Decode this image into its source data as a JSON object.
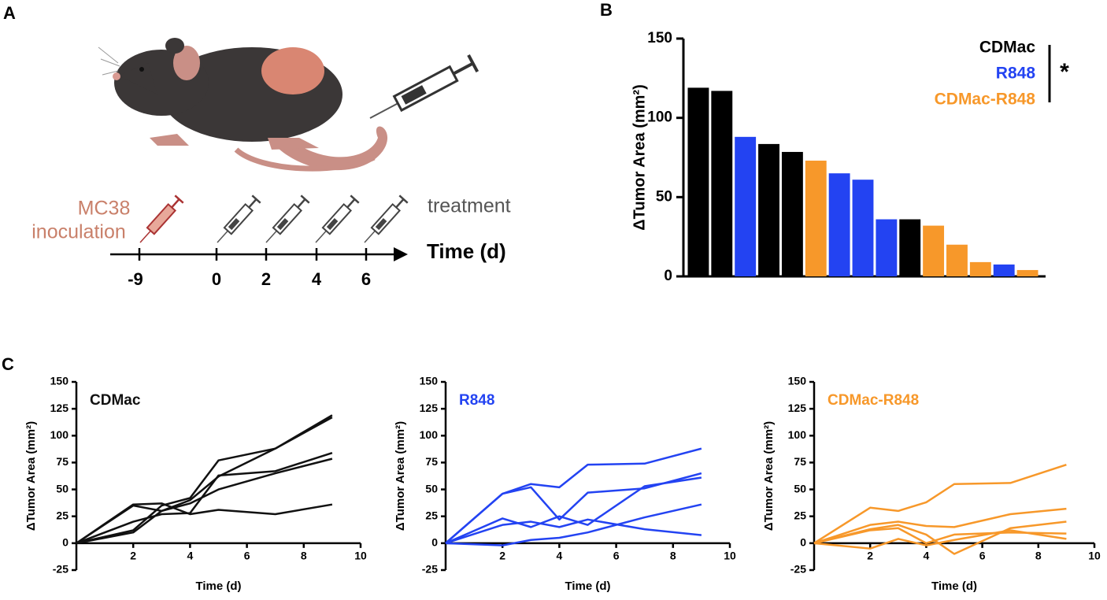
{
  "panel_labels": [
    "A",
    "B",
    "C"
  ],
  "diagram": {
    "inoculation_label": [
      "MC38",
      "inoculation"
    ],
    "treatment_label": "treatment",
    "axis_label": "Time (d)",
    "timeline_labels": [
      "-9",
      "0",
      "2",
      "4",
      "6"
    ]
  },
  "chart_data": [
    {
      "type": "bar",
      "y_label": "ΔTumor Area (mm²)",
      "ylim": [
        0,
        150
      ],
      "yticks": [
        0,
        50,
        100,
        150
      ],
      "categories": [
        null,
        null,
        null,
        null,
        null,
        null,
        null,
        null,
        null,
        null,
        null,
        null,
        null,
        null,
        null
      ],
      "legend": "top-right",
      "annotation": "*",
      "series": [
        {
          "name": "CDMac",
          "color": "#000000",
          "values": [
            119,
            117,
            null,
            83.5,
            78.5,
            null,
            null,
            null,
            null,
            36,
            null,
            null,
            null,
            null,
            null
          ]
        },
        {
          "name": "R848",
          "color": "#2343f2",
          "values": [
            null,
            null,
            88,
            null,
            null,
            null,
            65,
            61,
            36,
            null,
            null,
            null,
            null,
            7.5,
            null
          ]
        },
        {
          "name": "CDMac-R848",
          "color": "#f7982a",
          "values": [
            null,
            null,
            null,
            null,
            null,
            73,
            null,
            null,
            null,
            null,
            32,
            20,
            9,
            null,
            4
          ]
        }
      ]
    },
    {
      "type": "line",
      "title": "CDMac",
      "x_label": "Time (d)",
      "y_label": "ΔTumor Area (mm²)",
      "color": "#111111",
      "xlim": [
        0,
        10
      ],
      "xticks": [
        2,
        4,
        6,
        8,
        10
      ],
      "ylim": [
        -25,
        150
      ],
      "yticks": [
        -25,
        0,
        25,
        50,
        75,
        100,
        125,
        150
      ],
      "x": [
        0,
        2,
        3,
        4,
        5,
        7,
        9
      ],
      "series": [
        {
          "values": [
            0,
            10,
            30,
            40,
            62,
            88,
            119
          ]
        },
        {
          "values": [
            0,
            12,
            35,
            42,
            77,
            88,
            117
          ]
        },
        {
          "values": [
            0,
            20,
            27,
            28,
            63,
            67,
            84
          ]
        },
        {
          "values": [
            0,
            35,
            30,
            37,
            50,
            65,
            78.5
          ]
        },
        {
          "values": [
            0,
            36,
            37,
            27,
            31,
            27,
            36
          ]
        }
      ]
    },
    {
      "type": "line",
      "title": "R848",
      "x_label": "Time (d)",
      "y_label": "ΔTumor Area (mm²)",
      "color": "#2343f2",
      "xlim": [
        0,
        10
      ],
      "xticks": [
        2,
        4,
        6,
        8,
        10
      ],
      "ylim": [
        -25,
        150
      ],
      "yticks": [
        -25,
        0,
        25,
        50,
        75,
        100,
        125,
        150
      ],
      "x": [
        0,
        2,
        3,
        4,
        5,
        7,
        9
      ],
      "series": [
        {
          "values": [
            0,
            46,
            55,
            52,
            73,
            74,
            88
          ]
        },
        {
          "values": [
            0,
            46,
            52,
            22,
            47,
            51,
            65
          ]
        },
        {
          "values": [
            0,
            23,
            15,
            25,
            17,
            53,
            61
          ]
        },
        {
          "values": [
            0,
            -2,
            3,
            5,
            10,
            24,
            36
          ]
        },
        {
          "values": [
            0,
            17,
            20,
            15,
            22,
            13,
            7.5
          ]
        }
      ]
    },
    {
      "type": "line",
      "title": "CDMac-R848",
      "x_label": "Time (d)",
      "y_label": "ΔTumor Area (mm²)",
      "color": "#f7982a",
      "xlim": [
        0,
        10
      ],
      "xticks": [
        2,
        4,
        6,
        8,
        10
      ],
      "ylim": [
        -25,
        150
      ],
      "yticks": [
        -25,
        0,
        25,
        50,
        75,
        100,
        125,
        150
      ],
      "x": [
        0,
        2,
        3,
        4,
        5,
        7,
        9
      ],
      "series": [
        {
          "values": [
            0,
            33,
            30,
            38,
            55,
            56,
            73
          ]
        },
        {
          "values": [
            0,
            17,
            20,
            16,
            15,
            27,
            32
          ]
        },
        {
          "values": [
            0,
            13,
            17,
            8,
            -10,
            14,
            20
          ]
        },
        {
          "values": [
            0,
            12,
            14,
            0,
            8,
            10,
            9
          ]
        },
        {
          "values": [
            0,
            -5,
            4,
            -2,
            3,
            12,
            4
          ]
        }
      ]
    }
  ]
}
